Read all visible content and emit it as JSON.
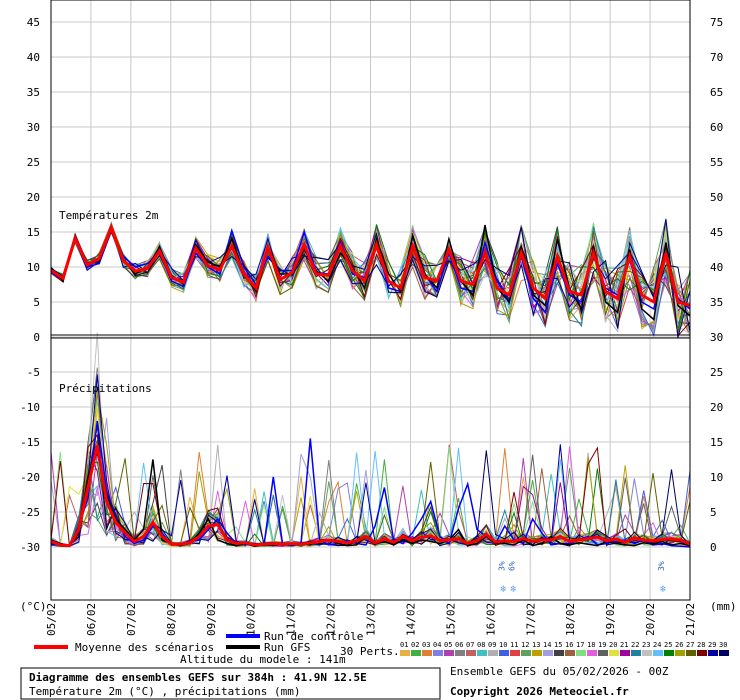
{
  "chart_data": {
    "type": "line",
    "temp_section_label": "Températures 2m",
    "precip_section_label": "Précipitations",
    "left_axis_ticks": [
      "45",
      "40",
      "35",
      "30",
      "25",
      "20",
      "15",
      "10",
      "5",
      "0",
      "-5",
      "-10",
      "-15",
      "-20",
      "-25",
      "-30"
    ],
    "right_axis_ticks": [
      "75",
      "70",
      "65",
      "60",
      "55",
      "50",
      "45",
      "40",
      "35",
      "30",
      "25",
      "20",
      "15",
      "10",
      "5",
      "0"
    ],
    "left_unit": "(°C)",
    "right_unit": "(mm)",
    "x_dates": [
      "05/02",
      "06/02",
      "07/02",
      "08/02",
      "09/02",
      "10/02",
      "11/02",
      "12/02",
      "13/02",
      "14/02",
      "15/02",
      "16/02",
      "17/02",
      "18/02",
      "19/02",
      "20/02",
      "21/02"
    ],
    "temp_mean": [
      9.5,
      8.4,
      14.1,
      10.3,
      11.2,
      15.6,
      10.9,
      9.4,
      9.8,
      12.3,
      8.5,
      7.8,
      12.7,
      10.2,
      9.6,
      13.0,
      9.0,
      7.0,
      12.8,
      8.2,
      9.2,
      13.2,
      9.0,
      8.8,
      13.0,
      9.5,
      8.0,
      13.2,
      8.0,
      7.0,
      13.0,
      8.5,
      8.0,
      12.5,
      8.0,
      7.5,
      12.0,
      7.0,
      6.0,
      12.0,
      7.0,
      5.5,
      11.5,
      6.5,
      6.0,
      12.0,
      6.5,
      5.5,
      11.5,
      6.0,
      5.0,
      12.0,
      5.0,
      4.5
    ],
    "temp_gfs": [
      9.8,
      8.0,
      14.2,
      10.6,
      10.8,
      15.6,
      11.0,
      9.0,
      10.0,
      12.8,
      8.8,
      7.5,
      13.2,
      10.8,
      10.0,
      14.0,
      9.2,
      6.5,
      13.0,
      9.0,
      9.0,
      12.5,
      9.5,
      8.0,
      12.0,
      10.0,
      7.0,
      14.0,
      9.0,
      6.5,
      14.5,
      9.0,
      7.0,
      14.0,
      8.0,
      6.0,
      16.0,
      7.0,
      5.0,
      13.0,
      6.0,
      4.5,
      14.0,
      7.0,
      4.0,
      13.0,
      5.0,
      3.5,
      12.5,
      4.0,
      2.5,
      13.5,
      4.5,
      3.0
    ],
    "temp_control": [
      9.2,
      8.2,
      14.0,
      10.0,
      10.5,
      15.3,
      11.5,
      10.0,
      10.5,
      12.0,
      8.0,
      7.2,
      12.0,
      10.0,
      9.0,
      15.2,
      10.0,
      7.5,
      11.5,
      9.5,
      9.5,
      15.0,
      9.2,
      9.0,
      13.5,
      9.0,
      8.5,
      13.2,
      7.0,
      6.5,
      14.5,
      9.0,
      6.5,
      12.0,
      7.0,
      6.5,
      13.5,
      8.0,
      5.0,
      11.5,
      5.5,
      3.5,
      10.5,
      6.0,
      5.0,
      12.0,
      7.0,
      6.0,
      11.0,
      5.0,
      4.0,
      12.0,
      5.5,
      4.0
    ],
    "precip_mean": [
      0.8,
      0.3,
      0.2,
      2.5,
      8.5,
      14.5,
      6.5,
      3.5,
      2.0,
      0.8,
      1.5,
      3.5,
      1.5,
      0.4,
      0.4,
      0.6,
      1.5,
      3.0,
      3.2,
      1.0,
      0.5,
      0.6,
      0.3,
      0.4,
      0.5,
      0.4,
      0.5,
      0.4,
      0.6,
      0.8,
      1.0,
      0.8,
      0.6,
      0.9,
      1.5,
      0.6,
      1.1,
      0.7,
      1.5,
      0.9,
      1.4,
      1.6,
      0.9,
      1.0,
      1.2,
      0.5,
      0.9,
      1.8,
      0.7,
      0.9,
      0.8,
      1.2,
      0.8,
      1.0,
      1.0,
      1.5,
      0.8,
      1.0,
      1.2,
      1.4,
      0.9,
      1.1,
      0.7,
      1.3,
      1.0,
      0.9,
      1.1,
      1.2,
      1.0,
      0.4
    ],
    "precip_gfs": [
      1.0,
      0.5,
      0.2,
      2.0,
      10.0,
      13.5,
      7.5,
      4.0,
      2.5,
      1.0,
      2.5,
      12.5,
      1.0,
      0.5,
      0.2,
      0.5,
      2.0,
      4.0,
      1.0,
      0.5,
      0.2,
      0.5,
      0.1,
      0.3,
      0.2,
      0.5,
      0.3,
      0.5,
      0.3,
      1.0,
      1.0,
      0.5,
      0.2,
      0.3,
      1.5,
      0.4,
      0.8,
      0.3,
      1.0,
      0.5,
      1.0,
      0.8,
      0.5,
      1.0,
      2.5,
      0.2,
      0.5,
      1.5,
      0.5,
      0.5,
      0.3,
      1.0,
      0.2,
      0.5,
      1.5,
      0.5,
      0.3,
      0.6,
      0.4,
      0.2,
      0.8,
      0.5,
      0.3,
      0.2,
      0.6,
      0.4,
      0.8,
      0.3,
      0.5,
      0.2
    ],
    "precip_control": [
      0.5,
      0.2,
      0.1,
      3.0,
      7.0,
      18.0,
      8.0,
      4.5,
      1.5,
      0.5,
      1.0,
      3.0,
      2.0,
      0.3,
      0.5,
      0.8,
      1.0,
      2.5,
      4.0,
      2.0,
      0.5,
      0.4,
      0.2,
      0.3,
      10.0,
      0.5,
      0.2,
      0.5,
      15.5,
      1.0,
      0.3,
      0.5,
      1.0,
      0.5,
      0.3,
      3.0,
      8.5,
      1.0,
      0.5,
      2.0,
      4.0,
      6.5,
      1.5,
      0.5,
      5.5,
      9.0,
      2.5,
      1.5,
      0.5,
      3.0,
      1.0,
      0.5,
      4.0,
      2.0,
      0.3,
      0.5,
      0.5,
      1.0,
      1.5,
      0.3,
      0.5,
      0.8,
      1.0,
      0.5,
      1.0,
      0.3,
      0.5,
      0.2,
      0.1,
      0.0
    ],
    "legend": {
      "mean": "Moyenne des scénarios",
      "control": "Run de contrôle",
      "gfs": "Run GFS",
      "perts": "30 Perts.",
      "altitude": "Altitude du modele : 141m"
    },
    "pert_numbers": [
      "01",
      "02",
      "03",
      "04",
      "05",
      "06",
      "07",
      "08",
      "09",
      "10",
      "11",
      "12",
      "13",
      "14",
      "15",
      "16",
      "17",
      "18",
      "19",
      "20",
      "21",
      "22",
      "23",
      "24",
      "25",
      "26",
      "27",
      "28",
      "29",
      "30"
    ],
    "pert_colors": [
      "#e8b040",
      "#40b040",
      "#e08030",
      "#8080e0",
      "#b040b0",
      "#808080",
      "#c06060",
      "#40c0c0",
      "#b0b0b0",
      "#4060e0",
      "#e04040",
      "#60a060",
      "#c0a000",
      "#a0a0e0",
      "#404040",
      "#a06040",
      "#80e080",
      "#e060e0",
      "#606060",
      "#e0e040",
      "#a000a0",
      "#2080a0",
      "#c0c0c0",
      "#60c0ff",
      "#008000",
      "#a0a000",
      "#606000",
      "#800000",
      "#0000a0",
      "#000060"
    ],
    "snow_labels": [
      {
        "date_index": 11,
        "pct": [
          "3%",
          "6%"
        ]
      },
      {
        "date_index": 15,
        "pct": [
          "3%"
        ]
      }
    ],
    "caption": {
      "title": "Diagramme des ensembles GEFS sur 384h : 41.9N 12.5E",
      "subtitle": "Température 2m (°C) , précipitations (mm)",
      "run": "Ensemble GEFS du 05/02/2026 - 00Z",
      "copyright": "Copyright 2026 Meteociel.fr"
    },
    "colors": {
      "mean": "#ff0000",
      "control": "#0000ff",
      "gfs": "#000000",
      "grid": "#c8c8c8"
    }
  }
}
